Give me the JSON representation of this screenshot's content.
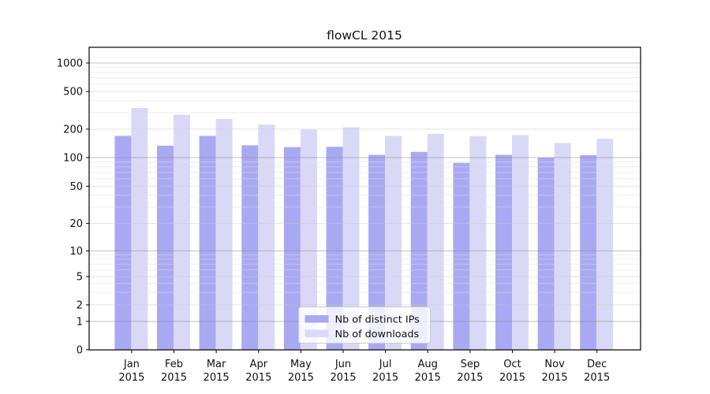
{
  "chart_data": {
    "type": "bar",
    "title": "flowCL 2015",
    "categories": [
      "Jan",
      "Feb",
      "Mar",
      "Apr",
      "May",
      "Jun",
      "Jul",
      "Aug",
      "Sep",
      "Oct",
      "Nov",
      "Dec"
    ],
    "category_year": "2015",
    "series": [
      {
        "name": "Nb of distinct IPs",
        "color": "#a9a9f3",
        "values": [
          170,
          134,
          170,
          135,
          129,
          130,
          107,
          115,
          88,
          107,
          100,
          106
        ]
      },
      {
        "name": "Nb of downloads",
        "color": "#d9d9f7",
        "values": [
          335,
          285,
          257,
          224,
          198,
          209,
          170,
          178,
          169,
          173,
          143,
          158
        ]
      }
    ],
    "xlabel": "",
    "ylabel": "",
    "yticks": [
      0,
      1,
      2,
      5,
      10,
      20,
      50,
      100,
      200,
      500,
      1000
    ],
    "ytick_labels": [
      "0",
      "1",
      "2",
      "5",
      "10",
      "20",
      "50",
      "100",
      "200",
      "500",
      "1000"
    ],
    "ylim": [
      0,
      1000
    ],
    "scale": "symlog",
    "grid": true,
    "legend_position": "bottom-center"
  },
  "colors": {
    "background": "#ffffff",
    "axis": "#000000",
    "grid_decade": "#8c8c8c",
    "grid_tick": "#c9c9c9",
    "grid_minor": "#dedede",
    "legend_border": "#cccccc",
    "legend_face": "#ffffff"
  }
}
